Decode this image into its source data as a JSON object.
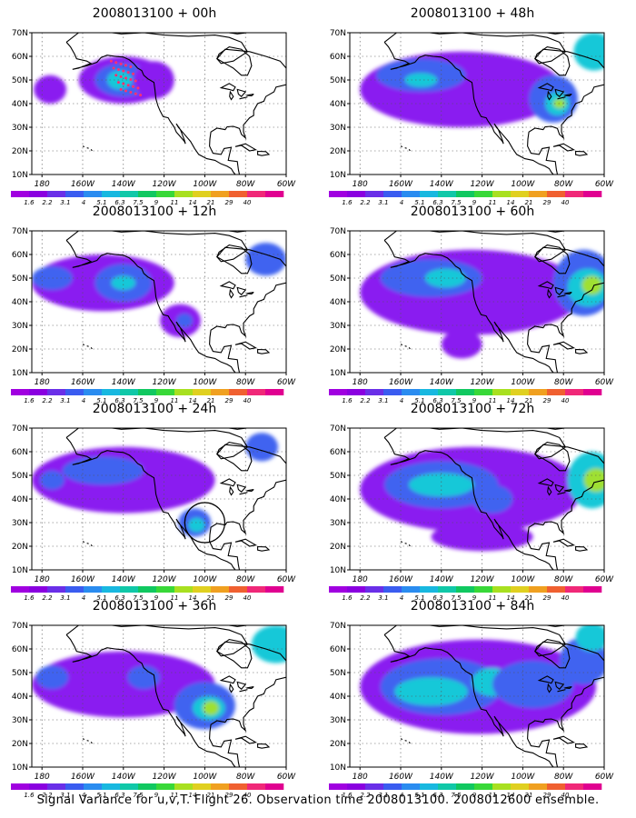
{
  "panels": [
    {
      "title": "2008013100 + 00h",
      "column": "left",
      "row": 0,
      "has_flight_track": true,
      "has_circle": false
    },
    {
      "title": "2008013100 + 12h",
      "column": "left",
      "row": 1,
      "has_flight_track": false,
      "has_circle": false
    },
    {
      "title": "2008013100 + 24h",
      "column": "left",
      "row": 2,
      "has_flight_track": false,
      "has_circle": true
    },
    {
      "title": "2008013100 + 36h",
      "column": "left",
      "row": 3,
      "has_flight_track": false,
      "has_circle": false
    },
    {
      "title": "2008013100 + 48h",
      "column": "right",
      "row": 0,
      "has_flight_track": false,
      "has_circle": false
    },
    {
      "title": "2008013100 + 60h",
      "column": "right",
      "row": 1,
      "has_flight_track": false,
      "has_circle": false
    },
    {
      "title": "2008013100 + 72h",
      "column": "right",
      "row": 2,
      "has_flight_track": false,
      "has_circle": false
    },
    {
      "title": "2008013100 + 84h",
      "column": "right",
      "row": 3,
      "has_flight_track": false,
      "has_circle": false
    }
  ],
  "lat_labels": [
    "10N",
    "20N",
    "30N",
    "40N",
    "50N",
    "60N",
    "70N"
  ],
  "lon_labels": [
    "180",
    "160W",
    "140W",
    "120W",
    "100W",
    "80W",
    "60W"
  ],
  "colorbar": {
    "labels": [
      "1.6",
      "2.2",
      "3.1",
      "4",
      "5.1",
      "6.3",
      "7.5",
      "9",
      "11",
      "14",
      "21",
      "29",
      "40"
    ],
    "colors": [
      "#a000e0",
      "#8a00e0",
      "#6a2fe8",
      "#3a5cf0",
      "#2a8cf0",
      "#18b8e0",
      "#10c8a8",
      "#10c860",
      "#38d838",
      "#a8e020",
      "#e0d020",
      "#f0a020",
      "#f06030",
      "#f02878",
      "#e00090"
    ]
  },
  "colors": {
    "land_line": "#000000",
    "flight_track": "#ff3070",
    "low": "#8a1cf0",
    "mid": "#3f63f0",
    "high": "#19c8d8",
    "peak": "#9fe030"
  },
  "caption": "Signal Variance for u,v,T. Flight 26. Observation time 2008013100. 2008012600 ensemble."
}
